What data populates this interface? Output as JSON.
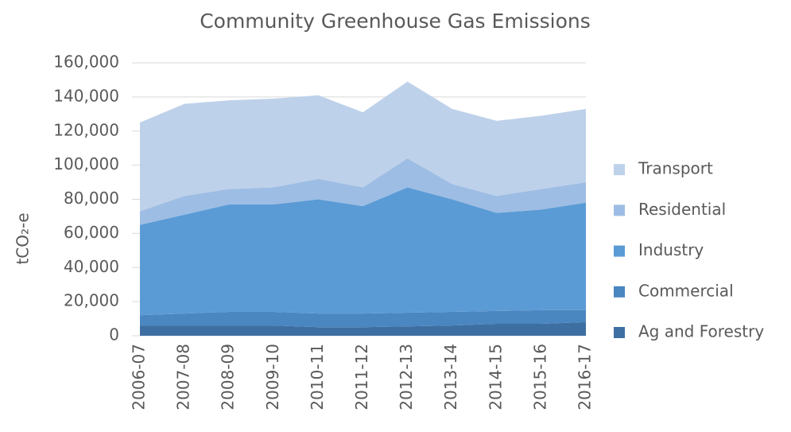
{
  "chart_data": {
    "type": "stacked-area",
    "title": "Community Greenhouse Gas Emissions",
    "y_label": "tCO₂-e",
    "categories": [
      "2006-07",
      "2007-08",
      "2008-09",
      "2009-10",
      "2010-11",
      "2011-12",
      "2012-13",
      "2013-14",
      "2014-15",
      "2015-16",
      "2016-17"
    ],
    "series": [
      {
        "name": "Ag and Forestry",
        "color": "#3d6fa3",
        "values": [
          6000,
          6000,
          6000,
          6000,
          5000,
          5000,
          5500,
          6000,
          7000,
          7000,
          8000
        ]
      },
      {
        "name": "Commercial",
        "color": "#4a86c0",
        "values": [
          6000,
          7000,
          8000,
          8000,
          8000,
          8000,
          8000,
          8000,
          7500,
          8000,
          7000
        ]
      },
      {
        "name": "Industry",
        "color": "#5b9bd5",
        "values": [
          53000,
          58000,
          63000,
          63000,
          67000,
          63000,
          73500,
          66000,
          57500,
          59000,
          63000
        ]
      },
      {
        "name": "Residential",
        "color": "#9dbde4",
        "values": [
          8000,
          11000,
          9000,
          10000,
          12000,
          11000,
          17000,
          9000,
          10000,
          12000,
          12000
        ]
      },
      {
        "name": "Transport",
        "color": "#bed1ea",
        "values": [
          52000,
          54000,
          52000,
          52000,
          49000,
          44000,
          45000,
          44000,
          44000,
          43000,
          43000
        ]
      }
    ],
    "ylim": [
      0,
      160000
    ],
    "yticks": [
      0,
      {
        "value": 20000,
        "label": "20,000"
      },
      {
        "value": 40000,
        "label": "40,000"
      },
      {
        "value": 60000,
        "label": "60,000"
      },
      {
        "value": 80000,
        "label": "80,000"
      },
      {
        "value": 100000,
        "label": "100,000"
      },
      {
        "value": 120000,
        "label": "120,000"
      },
      {
        "value": 140000,
        "label": "140,000"
      },
      {
        "value": 160000,
        "label": "160,000"
      }
    ],
    "grid": true,
    "legend": "right"
  }
}
